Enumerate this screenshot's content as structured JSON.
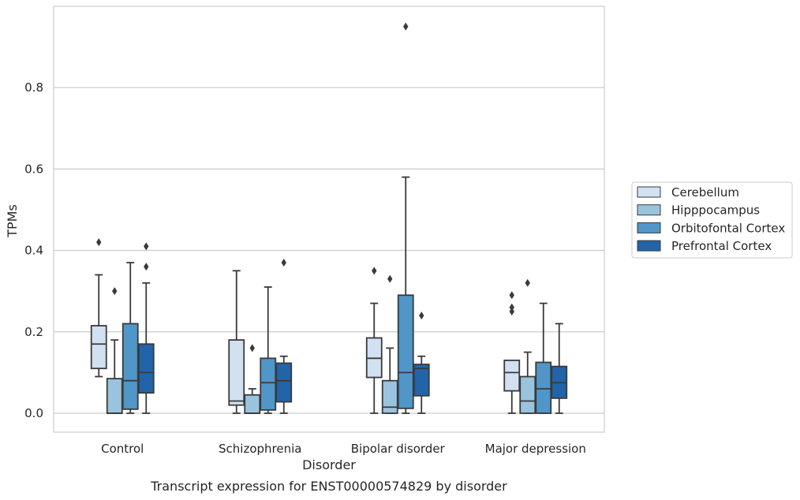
{
  "chart_data": {
    "type": "box",
    "caption": "Transcript expression for ENST00000574829 by disorder",
    "xlabel": "Disorder",
    "ylabel": "TPMs",
    "ylim": [
      -0.045,
      0.98
    ],
    "yticks": [
      0.0,
      0.2,
      0.4,
      0.6,
      0.8
    ],
    "ytick_labels": [
      "0.0",
      "0.2",
      "0.4",
      "0.6",
      "0.8"
    ],
    "grid": "horizontal",
    "legend_position": "right",
    "categories": [
      "Control",
      "Schizophrenia",
      "Bipolar disorder",
      "Major depression"
    ],
    "series": [
      {
        "name": "Cerebellum",
        "color": "#d1e1f1",
        "boxes": [
          {
            "whislo": 0.09,
            "q1": 0.11,
            "med": 0.17,
            "q3": 0.215,
            "whishi": 0.34,
            "fliers": [
              0.42
            ]
          },
          {
            "whislo": 0.0,
            "q1": 0.02,
            "med": 0.03,
            "q3": 0.18,
            "whishi": 0.35,
            "fliers": []
          },
          {
            "whislo": 0.0,
            "q1": 0.088,
            "med": 0.135,
            "q3": 0.185,
            "whishi": 0.27,
            "fliers": [
              0.35
            ]
          },
          {
            "whislo": 0.0,
            "q1": 0.055,
            "med": 0.1,
            "q3": 0.13,
            "whishi": 0.13,
            "fliers": [
              0.25,
              0.26,
              0.29
            ]
          }
        ]
      },
      {
        "name": "Hipppocampus",
        "color": "#9ac4de",
        "boxes": [
          {
            "whislo": 0.0,
            "q1": 0.0,
            "med": 0.0,
            "q3": 0.085,
            "whishi": 0.18,
            "fliers": [
              0.3
            ]
          },
          {
            "whislo": 0.0,
            "q1": 0.0,
            "med": 0.0,
            "q3": 0.045,
            "whishi": 0.06,
            "fliers": [
              0.16
            ]
          },
          {
            "whislo": 0.0,
            "q1": 0.0,
            "med": 0.015,
            "q3": 0.08,
            "whishi": 0.16,
            "fliers": [
              0.33
            ]
          },
          {
            "whislo": 0.0,
            "q1": 0.0,
            "med": 0.03,
            "q3": 0.09,
            "whishi": 0.15,
            "fliers": [
              0.32
            ]
          }
        ]
      },
      {
        "name": "Orbitofontal Cortex",
        "color": "#5096c8",
        "boxes": [
          {
            "whislo": 0.0,
            "q1": 0.01,
            "med": 0.08,
            "q3": 0.22,
            "whishi": 0.37,
            "fliers": []
          },
          {
            "whislo": 0.0,
            "q1": 0.008,
            "med": 0.075,
            "q3": 0.135,
            "whishi": 0.31,
            "fliers": []
          },
          {
            "whislo": 0.0,
            "q1": 0.012,
            "med": 0.1,
            "q3": 0.29,
            "whishi": 0.58,
            "fliers": [
              0.95
            ]
          },
          {
            "whislo": 0.0,
            "q1": 0.0,
            "med": 0.06,
            "q3": 0.125,
            "whishi": 0.27,
            "fliers": []
          }
        ]
      },
      {
        "name": "Prefrontal Cortex",
        "color": "#2264a9",
        "boxes": [
          {
            "whislo": 0.0,
            "q1": 0.05,
            "med": 0.1,
            "q3": 0.17,
            "whishi": 0.32,
            "fliers": [
              0.36,
              0.41
            ]
          },
          {
            "whislo": 0.0,
            "q1": 0.028,
            "med": 0.08,
            "q3": 0.123,
            "whishi": 0.14,
            "fliers": [
              0.37
            ]
          },
          {
            "whislo": 0.0,
            "q1": 0.043,
            "med": 0.11,
            "q3": 0.12,
            "whishi": 0.14,
            "fliers": [
              0.24
            ]
          },
          {
            "whislo": 0.0,
            "q1": 0.037,
            "med": 0.075,
            "q3": 0.115,
            "whishi": 0.22,
            "fliers": []
          }
        ]
      }
    ]
  }
}
